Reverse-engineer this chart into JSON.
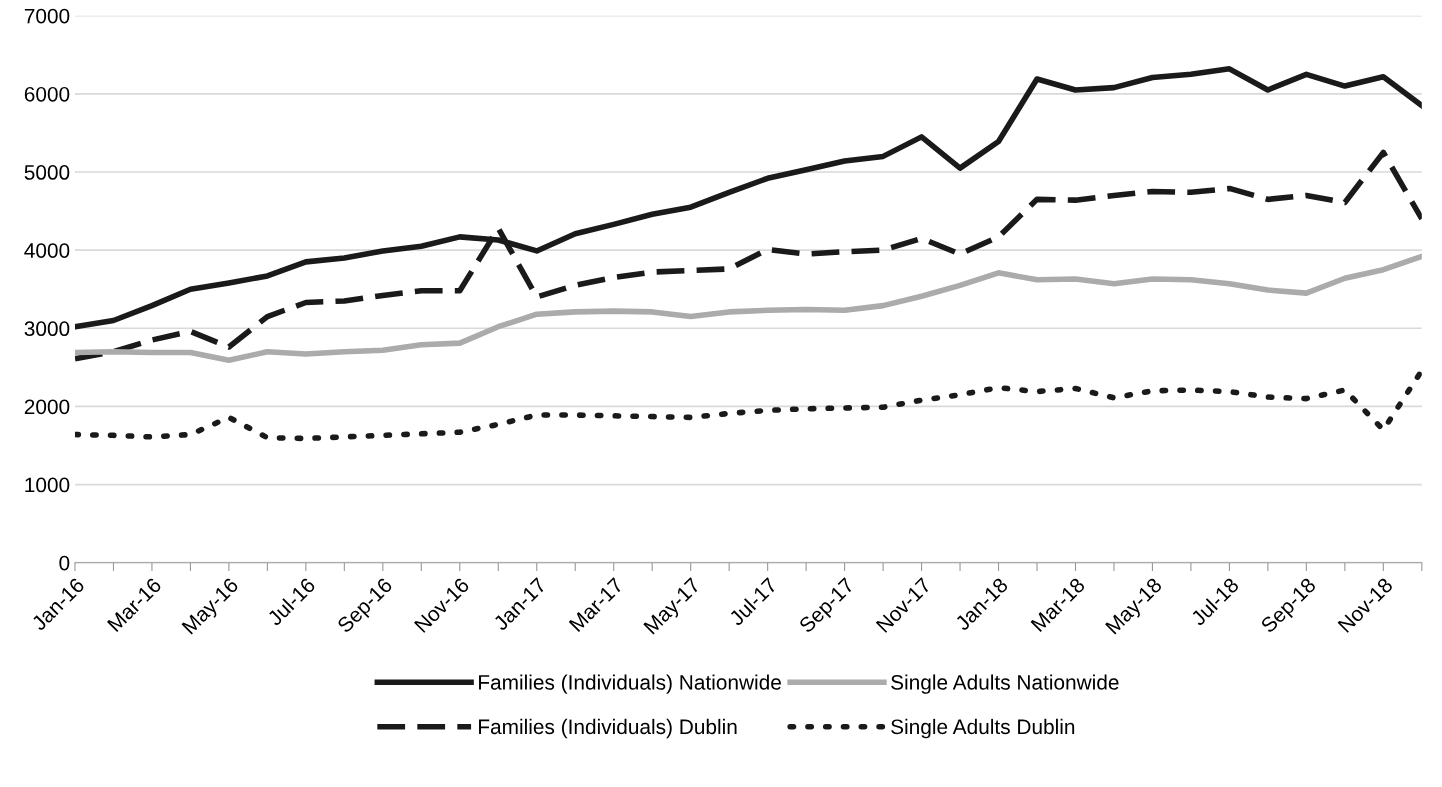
{
  "chart_data": {
    "type": "line",
    "categories": [
      "Jan-16",
      null,
      "Mar-16",
      null,
      "May-16",
      null,
      "Jul-16",
      null,
      "Sep-16",
      null,
      "Nov-16",
      null,
      "Jan-17",
      null,
      "Mar-17",
      null,
      "May-17",
      null,
      "Jul-17",
      null,
      "Sep-17",
      null,
      "Nov-17",
      null,
      "Jan-18",
      null,
      "Mar-18",
      null,
      "May-18",
      null,
      "Jul-18",
      null,
      "Sep-18",
      null,
      "Nov-18",
      null
    ],
    "ylim": [
      0,
      7000
    ],
    "yticks": [
      0,
      1000,
      2000,
      3000,
      4000,
      5000,
      6000,
      7000
    ],
    "grid": "y",
    "legend": "bottom",
    "series": [
      {
        "name": "Families (Individuals) Nationwide",
        "color": "#1a1a1a",
        "line_style": "solid",
        "values": [
          3020,
          3100,
          3290,
          3500,
          3580,
          3670,
          3850,
          3900,
          3990,
          4050,
          4170,
          4130,
          3990,
          4210,
          4330,
          4460,
          4550,
          4740,
          4920,
          5030,
          5140,
          5200,
          5450,
          5050,
          5390,
          6190,
          6050,
          6080,
          6210,
          6250,
          6320,
          6050,
          6250,
          6100,
          6220,
          5850
        ]
      },
      {
        "name": "Families (Individuals) Dublin",
        "color": "#1a1a1a",
        "line_style": "dashed",
        "values": [
          2610,
          2700,
          2850,
          2960,
          2760,
          3150,
          3330,
          3350,
          3420,
          3480,
          3480,
          4280,
          3400,
          3550,
          3650,
          3720,
          3740,
          3760,
          4010,
          3950,
          3980,
          4000,
          4150,
          3950,
          4170,
          4650,
          4640,
          4700,
          4750,
          4740,
          4790,
          4650,
          4700,
          4610,
          5250,
          4400
        ]
      },
      {
        "name": "Single Adults Nationwide",
        "color": "#ababab",
        "line_style": "solid",
        "values": [
          2690,
          2700,
          2690,
          2690,
          2590,
          2700,
          2670,
          2700,
          2720,
          2790,
          2810,
          3020,
          3180,
          3210,
          3220,
          3210,
          3150,
          3210,
          3230,
          3240,
          3230,
          3290,
          3410,
          3550,
          3710,
          3620,
          3630,
          3570,
          3630,
          3620,
          3570,
          3490,
          3450,
          3640,
          3750,
          3920
        ]
      },
      {
        "name": "Single Adults Dublin",
        "color": "#1a1a1a",
        "line_style": "dotted",
        "values": [
          1640,
          1630,
          1610,
          1640,
          1860,
          1600,
          1590,
          1610,
          1630,
          1650,
          1670,
          1770,
          1890,
          1890,
          1880,
          1870,
          1860,
          1910,
          1950,
          1970,
          1980,
          1990,
          2080,
          2150,
          2240,
          2190,
          2230,
          2110,
          2200,
          2210,
          2190,
          2120,
          2100,
          2210,
          1700,
          2460
        ]
      }
    ]
  }
}
